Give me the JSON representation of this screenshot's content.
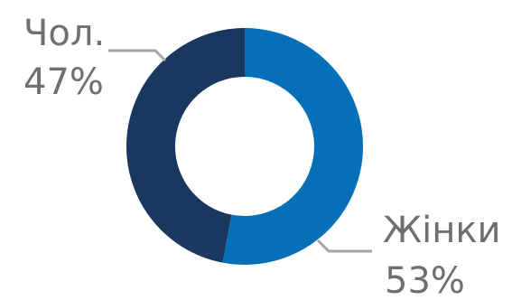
{
  "chart_data": {
    "type": "pie",
    "variant": "donut",
    "categories": [
      "Жінки",
      "Чол."
    ],
    "values": [
      53,
      47
    ],
    "value_labels": [
      "53%",
      "47%"
    ],
    "colors": [
      "#0570b8",
      "#1a375f"
    ],
    "leader_color": "#a6a6a6",
    "label_color": "#6f6f6f"
  }
}
